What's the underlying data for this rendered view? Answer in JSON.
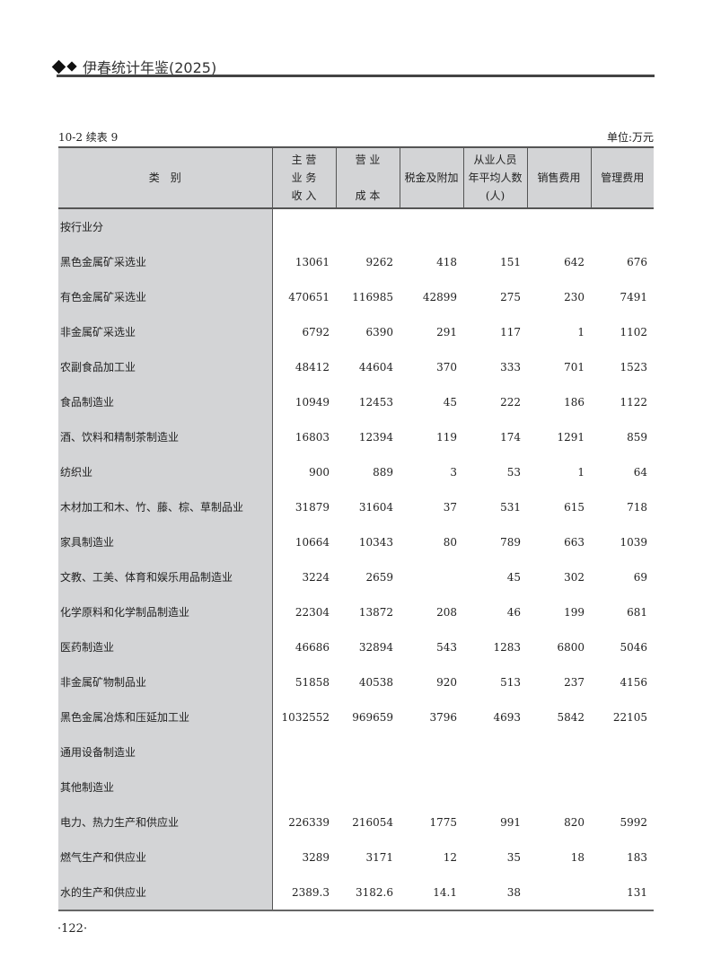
{
  "header": {
    "title": "伊春统计年鉴(2025)",
    "icon": "double-diamond-icon"
  },
  "table_id": "10-2  续表 9",
  "unit": "单位:万元",
  "columns": [
    [
      "类　别"
    ],
    [
      "主 营",
      "业 务",
      "收 入"
    ],
    [
      "营 业",
      "",
      "成 本"
    ],
    [
      "税金及附加"
    ],
    [
      "从业人员",
      "年平均人数",
      "(人)"
    ],
    [
      "销售费用"
    ],
    [
      "管理费用"
    ]
  ],
  "rows": [
    {
      "name": "按行业分",
      "v": [
        "",
        "",
        "",
        "",
        "",
        ""
      ]
    },
    {
      "name": "黑色金属矿采选业",
      "v": [
        "13061",
        "9262",
        "418",
        "151",
        "642",
        "676"
      ]
    },
    {
      "name": "有色金属矿采选业",
      "v": [
        "470651",
        "116985",
        "42899",
        "275",
        "230",
        "7491"
      ]
    },
    {
      "name": "非金属矿采选业",
      "v": [
        "6792",
        "6390",
        "291",
        "117",
        "1",
        "1102"
      ]
    },
    {
      "name": "农副食品加工业",
      "v": [
        "48412",
        "44604",
        "370",
        "333",
        "701",
        "1523"
      ]
    },
    {
      "name": "食品制造业",
      "v": [
        "10949",
        "12453",
        "45",
        "222",
        "186",
        "1122"
      ]
    },
    {
      "name": "酒、饮料和精制茶制造业",
      "v": [
        "16803",
        "12394",
        "119",
        "174",
        "1291",
        "859"
      ]
    },
    {
      "name": "纺织业",
      "v": [
        "900",
        "889",
        "3",
        "53",
        "1",
        "64"
      ]
    },
    {
      "name": "木材加工和木、竹、藤、棕、草制品业",
      "v": [
        "31879",
        "31604",
        "37",
        "531",
        "615",
        "718"
      ]
    },
    {
      "name": "家具制造业",
      "v": [
        "10664",
        "10343",
        "80",
        "789",
        "663",
        "1039"
      ]
    },
    {
      "name": "文教、工美、体育和娱乐用品制造业",
      "v": [
        "3224",
        "2659",
        "",
        "45",
        "302",
        "69"
      ]
    },
    {
      "name": "化学原料和化学制品制造业",
      "v": [
        "22304",
        "13872",
        "208",
        "46",
        "199",
        "681"
      ]
    },
    {
      "name": "医药制造业",
      "v": [
        "46686",
        "32894",
        "543",
        "1283",
        "6800",
        "5046"
      ]
    },
    {
      "name": "非金属矿物制品业",
      "v": [
        "51858",
        "40538",
        "920",
        "513",
        "237",
        "4156"
      ]
    },
    {
      "name": "黑色金属冶炼和压延加工业",
      "v": [
        "1032552",
        "969659",
        "3796",
        "4693",
        "5842",
        "22105"
      ]
    },
    {
      "name": "通用设备制造业",
      "v": [
        "",
        "",
        "",
        "",
        "",
        ""
      ]
    },
    {
      "name": "其他制造业",
      "v": [
        "",
        "",
        "",
        "",
        "",
        ""
      ]
    },
    {
      "name": "电力、热力生产和供应业",
      "v": [
        "226339",
        "216054",
        "1775",
        "991",
        "820",
        "5992"
      ]
    },
    {
      "name": "燃气生产和供应业",
      "v": [
        "3289",
        "3171",
        "12",
        "35",
        "18",
        "183"
      ]
    },
    {
      "name": "水的生产和供应业",
      "v": [
        "2389.3",
        "3182.6",
        "14.1",
        "38",
        "",
        "131"
      ]
    }
  ],
  "page_number": "·122·"
}
